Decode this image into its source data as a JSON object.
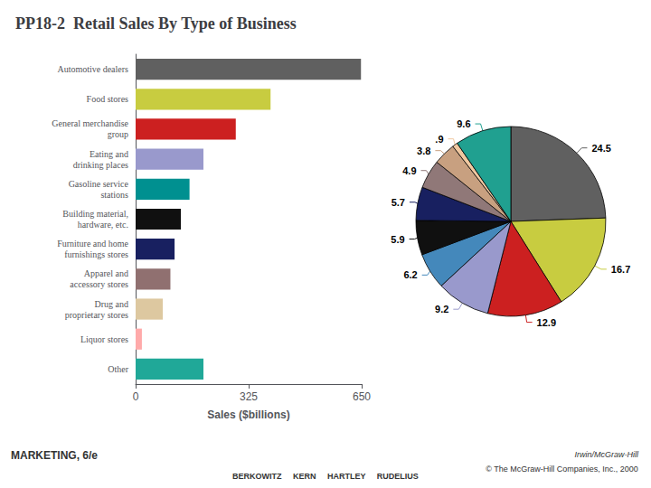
{
  "chart_data": [
    {
      "type": "bar",
      "title": "PP18-2  Retail Sales By Type of Business",
      "orientation": "horizontal",
      "categories": [
        "Automotive dealers",
        "Food stores",
        "General merchandise\ngroup",
        "Eating and\ndrinking places",
        "Gasoline service\nstations",
        "Building material,\nhardware, etc.",
        "Furniture and home\nfurnishings stores",
        "Apparel and\naccessory stores",
        "Drug and\nproprietary stores",
        "Liquor stores",
        "Other"
      ],
      "values": [
        648,
        388,
        288,
        195,
        155,
        130,
        112,
        100,
        78,
        18,
        195
      ],
      "colors": [
        "#606060",
        "#c8cc40",
        "#cc2020",
        "#9999cc",
        "#009090",
        "#101010",
        "#182060",
        "#907070",
        "#ddc8a0",
        "#ffaaaa",
        "#20a898"
      ],
      "xlabel": "Sales ($billions)",
      "xlim": [
        0,
        650
      ],
      "xticks": [
        0,
        325,
        650
      ],
      "grid": false,
      "annotations": [
        "MARKETING, 6/e",
        "BERKOWITZ     KERN     HARTLEY     RUDELIUS",
        "Irwin/McGraw-Hill",
        "© The McGraw-Hill Companies, Inc., 2000"
      ]
    },
    {
      "type": "pie",
      "values": [
        24.5,
        16.7,
        12.9,
        9.2,
        6.2,
        5.9,
        5.7,
        4.9,
        3.8,
        0.9,
        9.6
      ],
      "value_labels": [
        "24.5",
        "16.7",
        "12.9",
        "9.2",
        "6.2",
        "5.9",
        "5.7",
        "4.9",
        "3.8",
        ".9",
        "9.6"
      ],
      "colors": [
        "#606060",
        "#c8cc40",
        "#cc2020",
        "#9999cc",
        "#4488bb",
        "#101010",
        "#182060",
        "#907878",
        "#c8a080",
        "#f0c8a0",
        "#20a090"
      ],
      "data_labels": true
    }
  ]
}
